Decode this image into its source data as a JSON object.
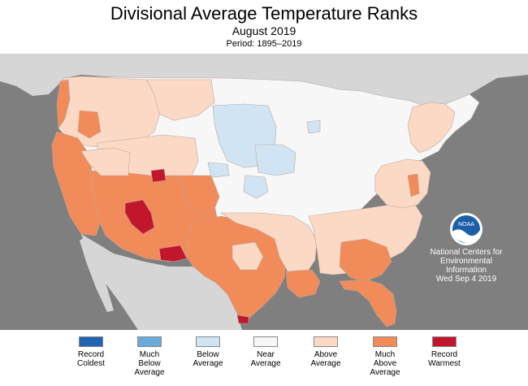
{
  "header": {
    "title": "Divisional Average Temperature Ranks",
    "subtitle": "August 2019",
    "period": "Period: 1895–2019"
  },
  "colors": {
    "record_coldest": "#1f63b3",
    "much_below": "#6aaad8",
    "below": "#d1e4f3",
    "near": "#f7f7f7",
    "above": "#fcd9c5",
    "much_above": "#f28b5a",
    "record_warmest": "#c2162d",
    "ocean": "#7f7f7f",
    "land_outside": "#d6d6d6"
  },
  "noaa": {
    "logo_text": "NOAA",
    "lines": [
      "National Centers for",
      "Environmental",
      "Information",
      "Wed Sep  4 2019"
    ]
  },
  "legend": [
    {
      "lines": [
        "Record",
        "Coldest"
      ],
      "color": "#1f63b3"
    },
    {
      "lines": [
        "Much",
        "Below",
        "Average"
      ],
      "color": "#6aaad8"
    },
    {
      "lines": [
        "Below",
        "Average"
      ],
      "color": "#d1e4f3"
    },
    {
      "lines": [
        "Near",
        "Average"
      ],
      "color": "#f7f7f7"
    },
    {
      "lines": [
        "Above",
        "Average"
      ],
      "color": "#fcd9c5"
    },
    {
      "lines": [
        "Much",
        "Above",
        "Average"
      ],
      "color": "#f28b5a"
    },
    {
      "lines": [
        "Record",
        "Warmest"
      ],
      "color": "#c2162d"
    }
  ]
}
